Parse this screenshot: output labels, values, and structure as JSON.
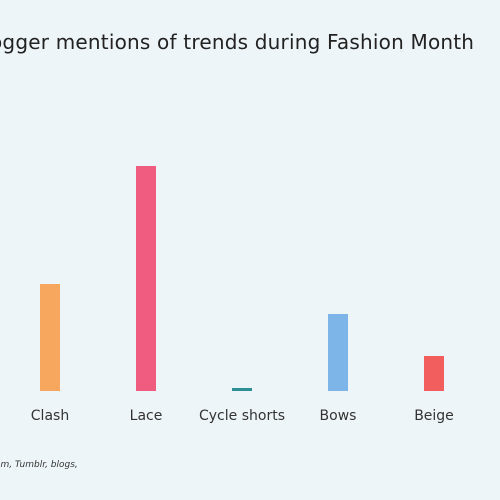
{
  "title": "ogger mentions of trends during Fashion Month",
  "source": "agram, Tumblr, blogs,",
  "chart_data": {
    "type": "bar",
    "title": "ogger mentions of trends during Fashion Month",
    "xlabel": "",
    "ylabel": "",
    "categories": [
      "Clash",
      "Lace",
      "Cycle shorts",
      "Bows",
      "Beige"
    ],
    "values": [
      107,
      225,
      3,
      77,
      35
    ],
    "colors": [
      "#f7a75e",
      "#f05c80",
      "#2f8f96",
      "#7db5e8",
      "#f25d5d"
    ],
    "ylim": [
      0,
      240
    ],
    "grid": false,
    "legend": "none"
  }
}
